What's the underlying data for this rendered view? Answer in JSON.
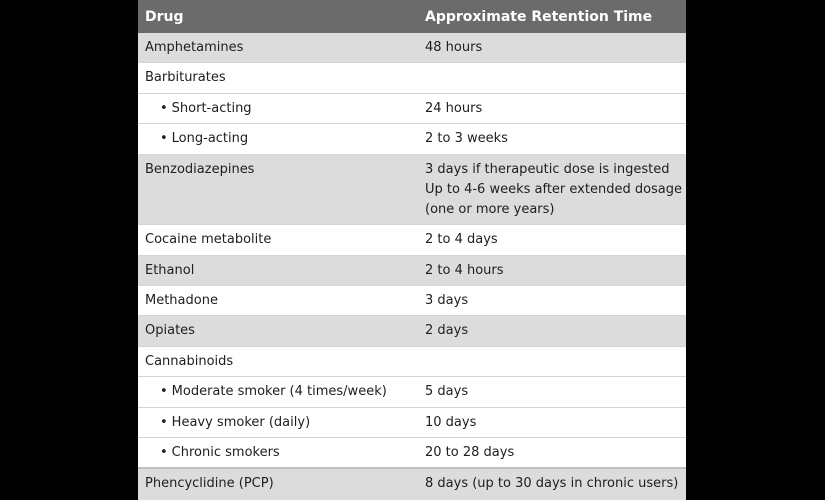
{
  "table": {
    "headers": [
      "Drug",
      "Approximate Retention Time"
    ],
    "rows": [
      {
        "drug": "Amphetamines",
        "time": "48 hours"
      },
      {
        "drug": "Barbiturates",
        "time": ""
      },
      {
        "drug": "Short-acting",
        "time": "24 hours"
      },
      {
        "drug": "Long-acting",
        "time": "2 to 3 weeks"
      },
      {
        "drug": "Benzodiazepines",
        "time_lines": [
          "3 days if therapeutic dose is ingested",
          "Up to 4-6 weeks after extended dosage",
          "(one or more years)"
        ]
      },
      {
        "drug": "Cocaine metabolite",
        "time": "2 to 4 days"
      },
      {
        "drug": "Ethanol",
        "time": "2 to 4 hours"
      },
      {
        "drug": "Methadone",
        "time": "3 days"
      },
      {
        "drug": "Opiates",
        "time": "2 days"
      },
      {
        "drug": "Cannabinoids",
        "time": ""
      },
      {
        "drug": "Moderate smoker (4 times/week)",
        "time": "5 days"
      },
      {
        "drug": "Heavy smoker (daily)",
        "time": "10 days"
      },
      {
        "drug": "Chronic smokers",
        "time": "20 to 28 days"
      },
      {
        "drug": "Phencyclidine (PCP)",
        "time": "8 days (up to 30 days in chronic users)"
      }
    ]
  }
}
